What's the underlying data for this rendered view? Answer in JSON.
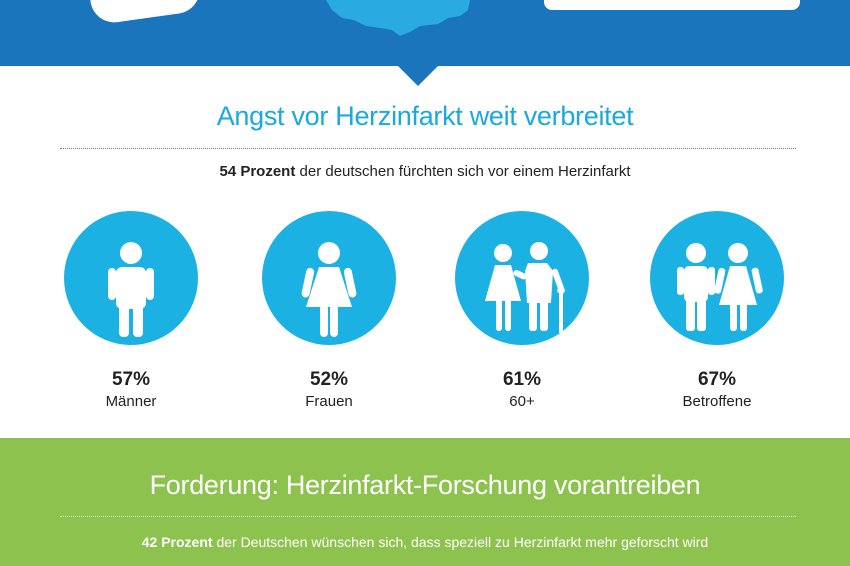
{
  "colors": {
    "header_blue": "#1a75bc",
    "accent_cyan": "#19a9df",
    "circle_blue": "#1cb1e3",
    "green": "#8dc24e"
  },
  "section1": {
    "title": "Angst vor Herzinfarkt weit verbreitet",
    "subtitle_bold": "54 Prozent",
    "subtitle_rest": " der deutschen fürchten sich vor einem Herzinfarkt",
    "groups": [
      {
        "icon": "man-icon",
        "percent": "57%",
        "label": "Männer"
      },
      {
        "icon": "woman-icon",
        "percent": "52%",
        "label": "Frauen"
      },
      {
        "icon": "elderly-couple-icon",
        "percent": "61%",
        "label": "60+"
      },
      {
        "icon": "couple-icon",
        "percent": "67%",
        "label": "Betroffene"
      }
    ]
  },
  "section2": {
    "title": "Forderung: Herzinfarkt-Forschung vorantreiben",
    "subtitle_bold": "42 Prozent",
    "subtitle_rest": " der Deutschen wünschen sich, dass speziell zu Herzinfarkt mehr geforscht wird"
  }
}
